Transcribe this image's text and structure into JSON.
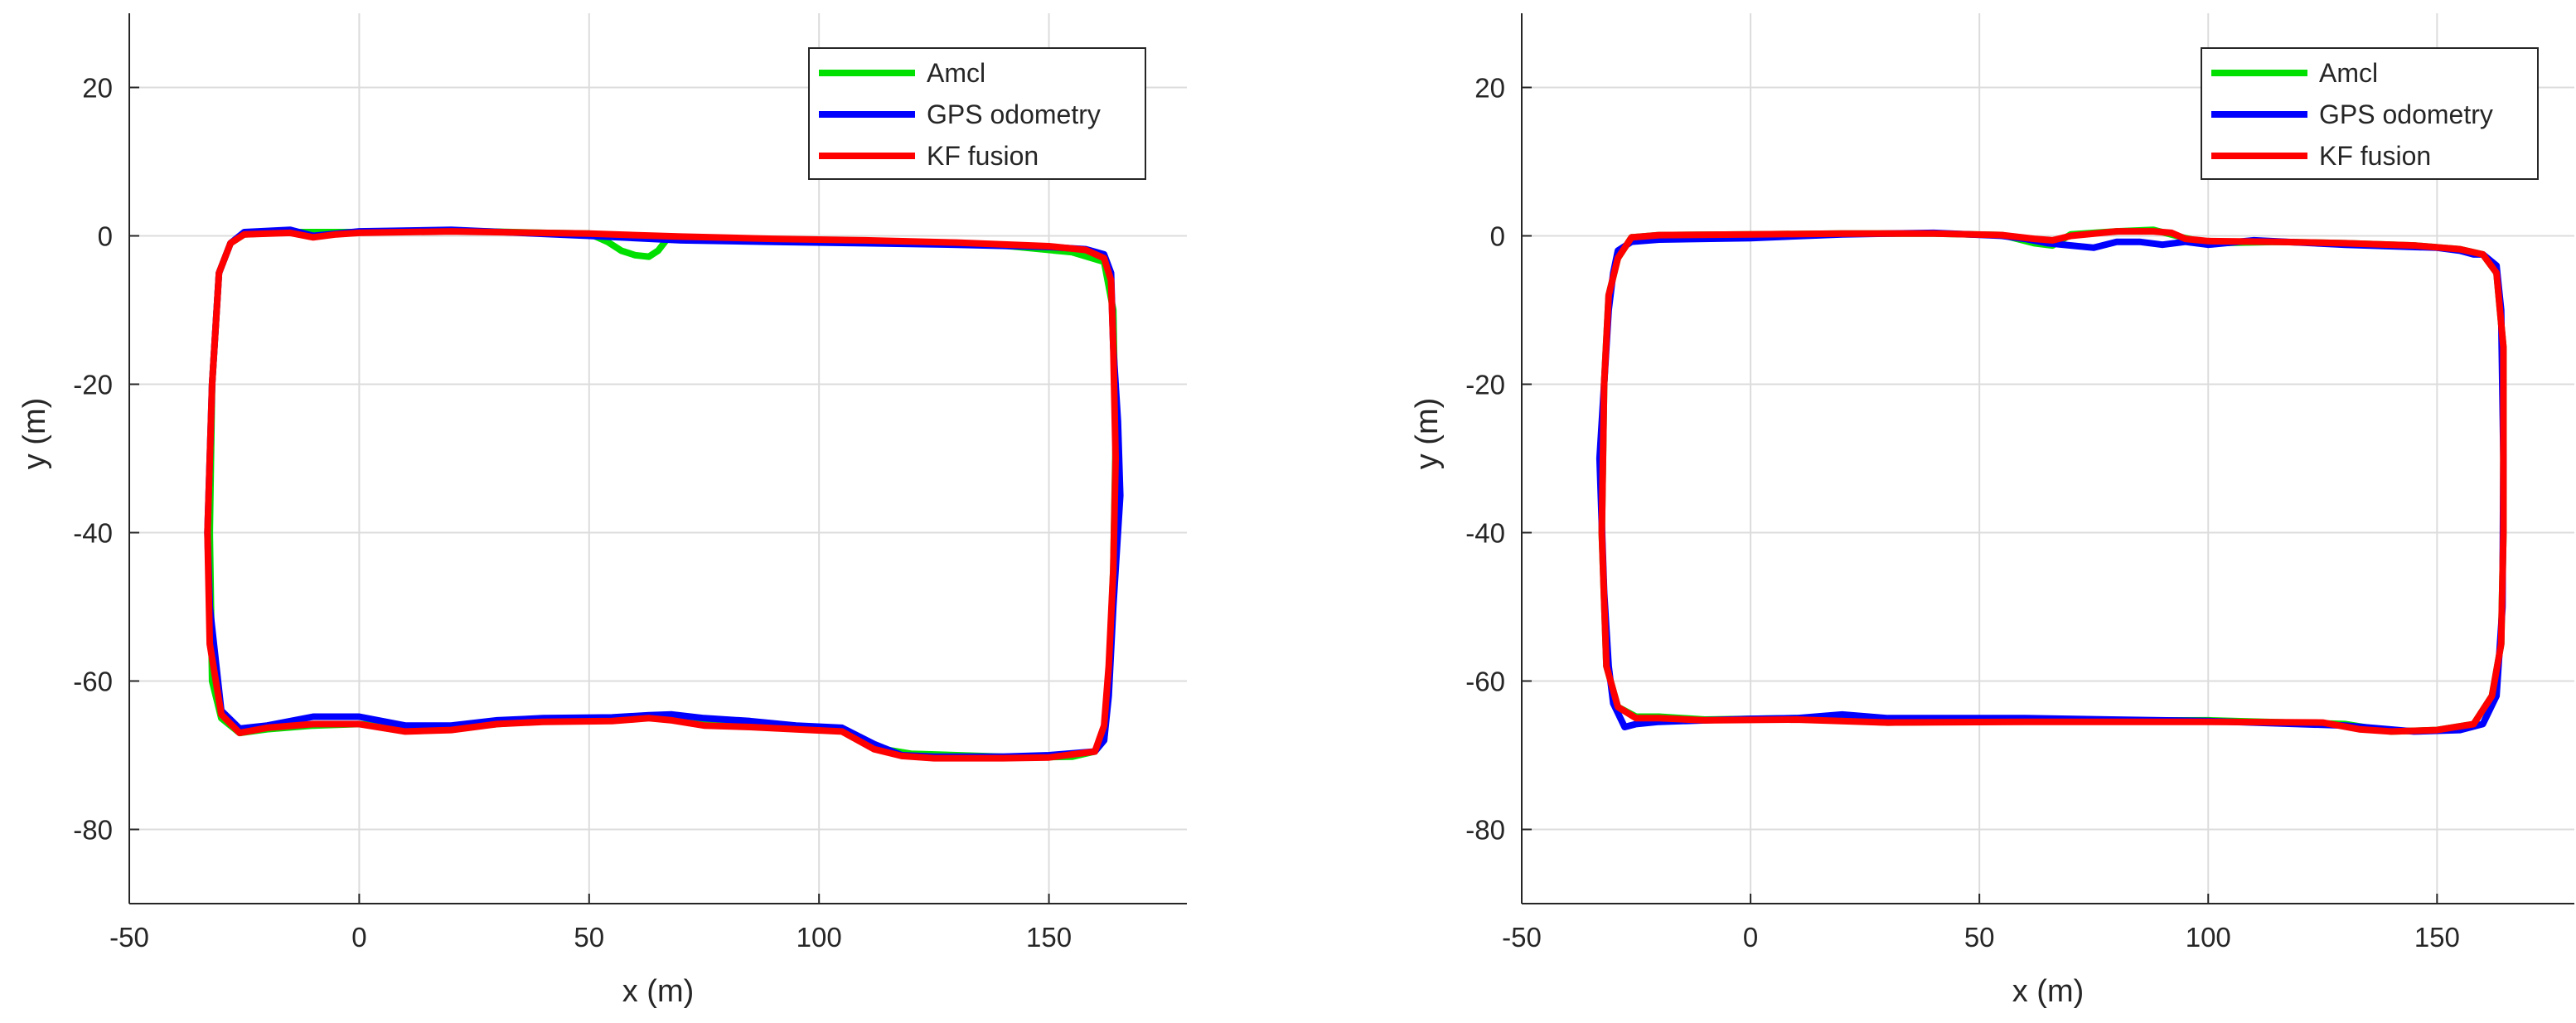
{
  "chart_data": [
    {
      "type": "line",
      "xlabel": "x (m)",
      "ylabel": "y (m)",
      "xlim": [
        -50,
        180
      ],
      "ylim": [
        -90,
        30
      ],
      "xticks": [
        "-50",
        "0",
        "50",
        "100",
        "150"
      ],
      "yticks": [
        "20",
        "0",
        "-20",
        "-40",
        "-60",
        "-80"
      ],
      "grid": true,
      "legend_position": "top-right",
      "series": [
        {
          "name": "Amcl",
          "color": "#00e000",
          "x": [
            -25,
            -15,
            0,
            20,
            40,
            50,
            54,
            57,
            60,
            63,
            65,
            67,
            70,
            80,
            100,
            120,
            140,
            155,
            162,
            164,
            164.5,
            164,
            163,
            162,
            160,
            155,
            145,
            130,
            120,
            112,
            105,
            95,
            80,
            70,
            65,
            55,
            40,
            30,
            20,
            10,
            0,
            -10,
            -20,
            -26,
            -30,
            -32,
            -32.5,
            -32,
            -30.5,
            -28,
            -25
          ],
          "y": [
            0.2,
            0.5,
            0.5,
            0.7,
            0.4,
            0.3,
            -0.8,
            -2,
            -2.6,
            -2.8,
            -2,
            -0.4,
            -0.2,
            -0.3,
            -0.6,
            -1.0,
            -1.3,
            -2.2,
            -3.5,
            -10,
            -28,
            -45,
            -60,
            -68,
            -69.5,
            -70.2,
            -70.3,
            -70.0,
            -69.8,
            -69.0,
            -66.6,
            -66.2,
            -65.8,
            -65.2,
            -64.8,
            -65.3,
            -65.4,
            -65.8,
            -66.4,
            -66.2,
            -65.8,
            -66.0,
            -66.5,
            -67.0,
            -65.0,
            -60.0,
            -40,
            -20,
            -5,
            -1.0,
            0.2
          ]
        },
        {
          "name": "GPS odometry",
          "color": "#0000ff",
          "x": [
            -25,
            -15,
            -10,
            -5,
            0,
            20,
            50,
            70,
            90,
            110,
            130,
            150,
            158,
            162,
            163.5,
            164,
            165,
            165.5,
            164,
            163,
            162,
            160,
            150,
            140,
            125,
            118,
            112,
            105,
            95,
            85,
            75,
            68,
            63,
            55,
            40,
            30,
            20,
            10,
            0,
            -10,
            -20,
            -26,
            -30,
            -32.5,
            -33,
            -32,
            -30.5,
            -28,
            -25
          ],
          "y": [
            0.5,
            0.8,
            0,
            0.3,
            0.6,
            0.8,
            0.0,
            -0.6,
            -0.8,
            -1.0,
            -1.2,
            -1.5,
            -1.8,
            -2.5,
            -5,
            -15,
            -25,
            -35,
            -50,
            -62,
            -68,
            -69.5,
            -70,
            -70.2,
            -70.2,
            -70.0,
            -68.5,
            -66.3,
            -66.0,
            -65.4,
            -65.0,
            -64.5,
            -64.6,
            -64.9,
            -65.0,
            -65.3,
            -66.0,
            -66.0,
            -64.8,
            -64.8,
            -66.0,
            -66.4,
            -64.0,
            -50,
            -40,
            -20,
            -5,
            -1.0,
            0.5
          ]
        },
        {
          "name": "KF fusion",
          "color": "#ff0000",
          "x": [
            -25,
            -15,
            -10,
            -5,
            0,
            20,
            50,
            70,
            90,
            110,
            130,
            150,
            158,
            162,
            163.5,
            164,
            164.5,
            164,
            163,
            162,
            160,
            150,
            140,
            125,
            118,
            112,
            105,
            95,
            85,
            75,
            68,
            63,
            55,
            40,
            30,
            20,
            10,
            0,
            -10,
            -20,
            -26,
            -30,
            -32.5,
            -33,
            -32,
            -30.5,
            -28,
            -25
          ],
          "y": [
            0.2,
            0.4,
            -0.2,
            0.2,
            0.4,
            0.6,
            0.3,
            -0.1,
            -0.4,
            -0.6,
            -0.9,
            -1.4,
            -1.9,
            -3,
            -6,
            -15,
            -30,
            -45,
            -58,
            -66,
            -69.5,
            -70.3,
            -70.4,
            -70.4,
            -70.1,
            -69.2,
            -66.8,
            -66.5,
            -66.2,
            -66.0,
            -65.3,
            -65.0,
            -65.4,
            -65.5,
            -65.8,
            -66.6,
            -66.8,
            -65.8,
            -65.8,
            -66.3,
            -67.0,
            -64.5,
            -55,
            -40,
            -20,
            -5,
            -1.0,
            0.2
          ]
        }
      ]
    },
    {
      "type": "line",
      "xlabel": "x (m)",
      "ylabel": "y (m)",
      "xlim": [
        -50,
        180
      ],
      "ylim": [
        -90,
        30
      ],
      "xticks": [
        "-50",
        "0",
        "50",
        "100",
        "150"
      ],
      "yticks": [
        "20",
        "0",
        "-20",
        "-40",
        "-60",
        "-80"
      ],
      "grid": true,
      "legend_position": "top-right",
      "series": [
        {
          "name": "Amcl",
          "color": "#00e000",
          "x": [
            -26,
            -20,
            0,
            20,
            40,
            55,
            62,
            66,
            70,
            80,
            88,
            95,
            100,
            115,
            130,
            145,
            155,
            160,
            163,
            164.5,
            164.5,
            164,
            162,
            158,
            150,
            140,
            130,
            100,
            60,
            30,
            10,
            -10,
            -20,
            -25,
            -29,
            -31.5,
            -32.5,
            -32,
            -31,
            -29,
            -26
          ],
          "y": [
            -0.2,
            0.1,
            0.2,
            0.3,
            0.3,
            0.1,
            -1.0,
            -1.3,
            0.2,
            0.6,
            0.8,
            -0.3,
            -1.0,
            -0.8,
            -1.0,
            -1.3,
            -1.8,
            -2.5,
            -5,
            -15,
            -40,
            -55,
            -62,
            -65.8,
            -66.6,
            -66.8,
            -65.8,
            -65.3,
            -65.4,
            -65.6,
            -65.0,
            -65.2,
            -64.8,
            -64.8,
            -63.5,
            -58,
            -40,
            -20,
            -8,
            -3,
            -0.2
          ]
        },
        {
          "name": "GPS odometry",
          "color": "#0000ff",
          "x": [
            -26,
            -20,
            0,
            20,
            40,
            55,
            60,
            65,
            70,
            75,
            80,
            85,
            90,
            95,
            100,
            110,
            130,
            150,
            155,
            158,
            160,
            163,
            164,
            164.5,
            164.3,
            163,
            160,
            155,
            145,
            130,
            100,
            60,
            30,
            20,
            10,
            0,
            -10,
            -20,
            -25,
            -27.5,
            -30,
            -31,
            -32,
            -33,
            -32,
            -31,
            -30,
            -29,
            -26
          ],
          "y": [
            -0.8,
            -0.5,
            -0.3,
            0.2,
            0.4,
            0.0,
            -0.4,
            -1.0,
            -1.3,
            -1.6,
            -0.8,
            -0.8,
            -1.2,
            -0.8,
            -1.2,
            -0.6,
            -1.2,
            -1.6,
            -2.0,
            -2.5,
            -2.5,
            -4,
            -10,
            -30,
            -50,
            -62,
            -65.8,
            -66.6,
            -66.8,
            -66.0,
            -65.4,
            -65.0,
            -65.0,
            -64.5,
            -65.0,
            -65.1,
            -65.3,
            -65.5,
            -65.8,
            -66.2,
            -63,
            -58,
            -48,
            -30,
            -20,
            -10,
            -5,
            -2,
            -0.8
          ]
        },
        {
          "name": "KF fusion",
          "color": "#ff0000",
          "x": [
            -26,
            -20,
            0,
            20,
            40,
            55,
            62,
            66,
            70,
            80,
            88,
            92,
            95,
            100,
            115,
            130,
            145,
            155,
            160,
            163,
            164.5,
            164.5,
            164,
            162,
            158,
            150,
            140,
            133,
            125,
            100,
            60,
            30,
            10,
            -10,
            -20,
            -25,
            -29,
            -31.5,
            -32.5,
            -32,
            -31,
            -29,
            -26
          ],
          "y": [
            -0.2,
            0.1,
            0.2,
            0.3,
            0.3,
            0.1,
            -0.4,
            -0.6,
            0.0,
            0.6,
            0.6,
            0.4,
            -0.4,
            -0.7,
            -0.8,
            -1.0,
            -1.3,
            -1.8,
            -2.5,
            -5,
            -15,
            -40,
            -55,
            -62,
            -65.8,
            -66.6,
            -66.8,
            -66.5,
            -65.6,
            -65.5,
            -65.5,
            -65.6,
            -65.2,
            -65.3,
            -65.0,
            -65.0,
            -63.5,
            -58,
            -40,
            -20,
            -8,
            -3,
            -0.2
          ]
        }
      ]
    }
  ]
}
